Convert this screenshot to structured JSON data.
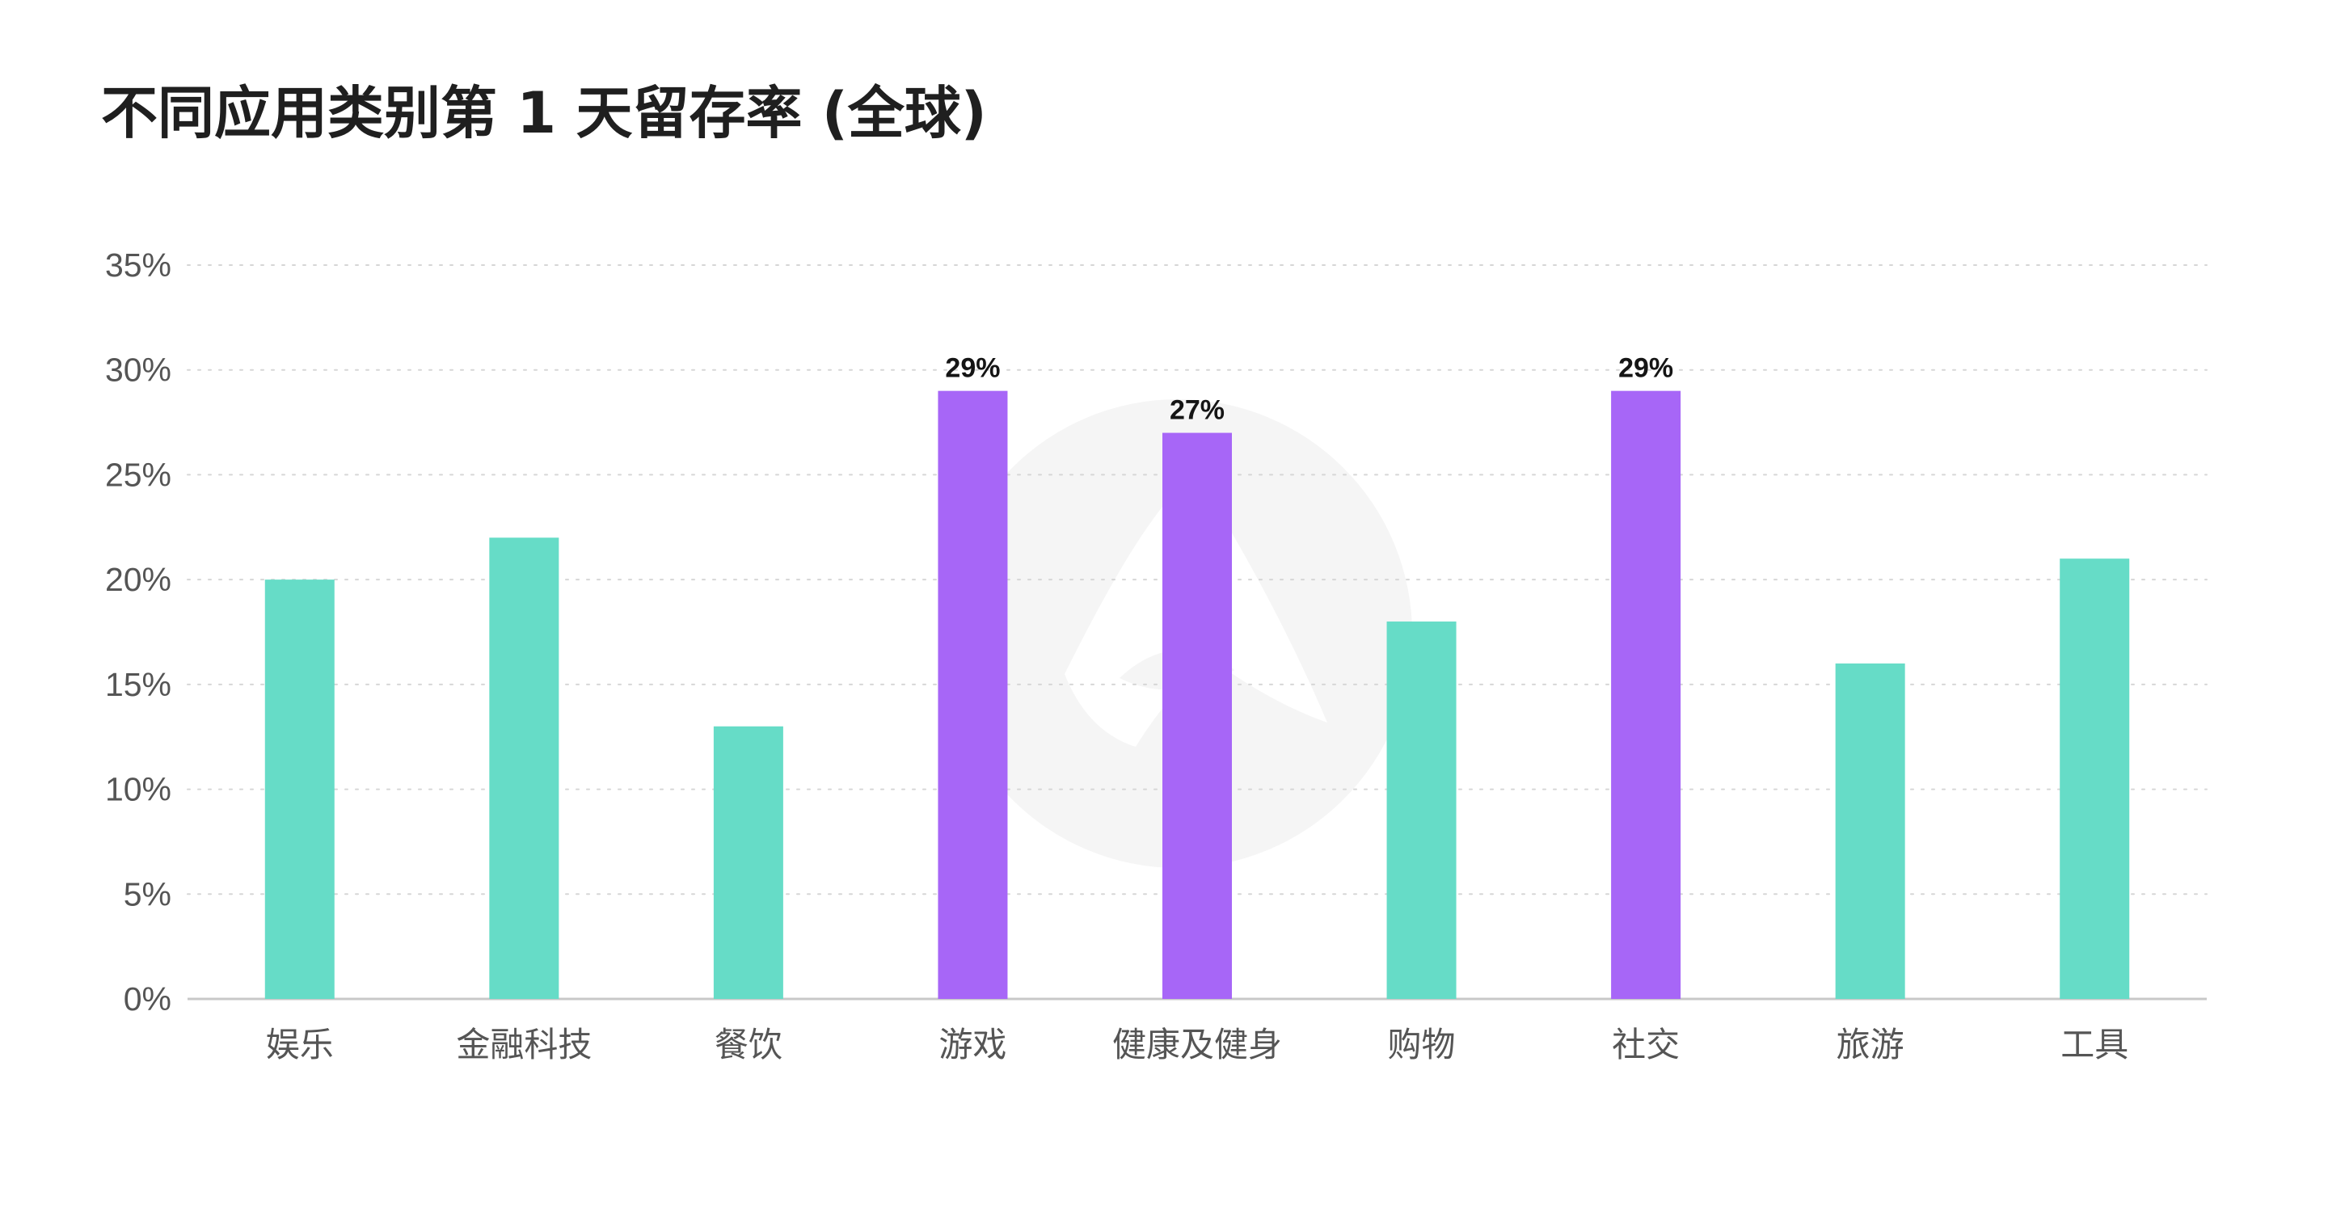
{
  "chart_data": {
    "type": "bar",
    "title": "不同应用类别第 1 天留存率 (全球)",
    "xlabel": "",
    "ylabel": "",
    "categories": [
      "娱乐",
      "金融科技",
      "餐饮",
      "游戏",
      "健康及健身",
      "购物",
      "社交",
      "旅游",
      "工具"
    ],
    "values": [
      20,
      22,
      13,
      29,
      27,
      18,
      29,
      16,
      21
    ],
    "value_unit": "%",
    "highlighted": [
      false,
      false,
      false,
      true,
      true,
      false,
      true,
      false,
      false
    ],
    "data_labels": [
      "",
      "",
      "",
      "29%",
      "27%",
      "",
      "29%",
      "",
      ""
    ],
    "ylim": [
      0,
      35
    ],
    "yticks": [
      0,
      5,
      10,
      15,
      20,
      25,
      30,
      35
    ],
    "ytick_labels": [
      "0%",
      "5%",
      "10%",
      "15%",
      "20%",
      "25%",
      "30%",
      "35%"
    ],
    "grid": true,
    "legend": "none",
    "colors": {
      "default": "#66dcc7",
      "highlight": "#a766f7",
      "grid": "#d6d6d6",
      "axis": "#c8c8c8",
      "tick_text": "#555555",
      "data_label_text": "#151515",
      "watermark": "#f3f3f3"
    }
  }
}
